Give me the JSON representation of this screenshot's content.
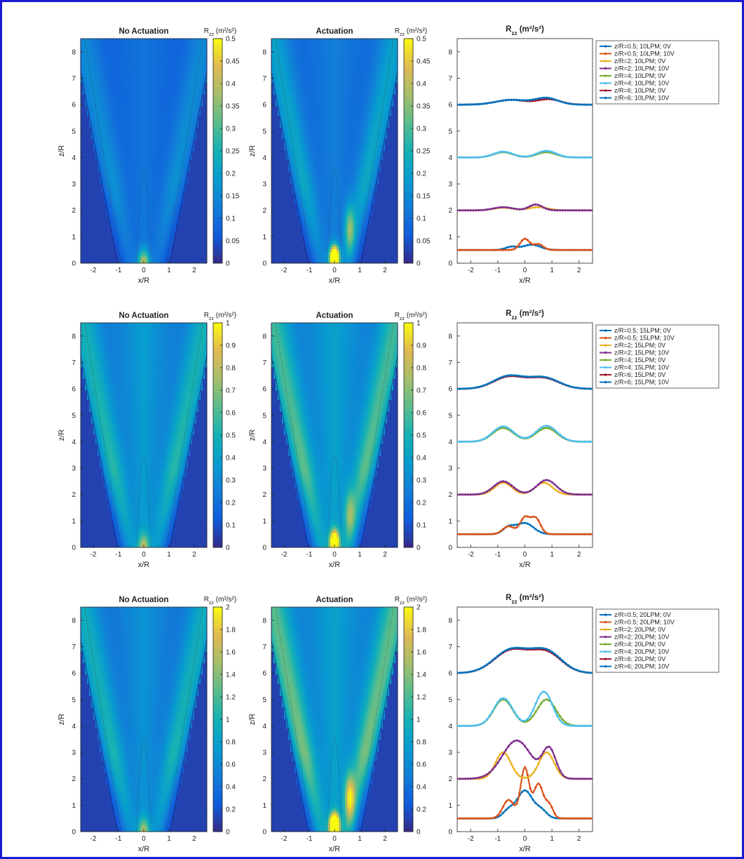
{
  "frame": {
    "border_color": "#1b1bd6",
    "background": "#ffffff"
  },
  "colormap": "parula",
  "chart_data": [
    {
      "row": 1,
      "type": "heatmap",
      "title": "No Actuation",
      "xlabel": "x/R",
      "ylabel": "z/R",
      "xlim": [
        -2.5,
        2.5
      ],
      "ylim": [
        0,
        8.5
      ],
      "xticks": [
        "-2",
        "-1",
        "0",
        "1",
        "2"
      ],
      "yticks": [
        "0",
        "1",
        "2",
        "3",
        "4",
        "5",
        "6",
        "7",
        "8"
      ],
      "colorbar_label": "R_zz (m²/s²)",
      "colorbar_ticks": [
        "0",
        "0.05",
        "0.1",
        "0.15",
        "0.2",
        "0.25",
        "0.3",
        "0.35",
        "0.4",
        "0.45",
        "0.5"
      ],
      "clim": [
        0,
        0.5
      ],
      "field": {
        "ambient": 0.03,
        "core": 0.12,
        "shear": 0.16,
        "nozzle": 0.3,
        "near_spot": 0.0
      }
    },
    {
      "row": 1,
      "type": "heatmap",
      "title": "Actuation",
      "xlabel": "x/R",
      "ylabel": "z/R",
      "xlim": [
        -2.5,
        2.5
      ],
      "ylim": [
        0,
        8.5
      ],
      "xticks": [
        "-2",
        "-1",
        "0",
        "1",
        "2"
      ],
      "yticks": [
        "0",
        "1",
        "2",
        "3",
        "4",
        "5",
        "6",
        "7",
        "8"
      ],
      "colorbar_label": "R_zz (m²/s²)",
      "colorbar_ticks": [
        "0",
        "0.05",
        "0.1",
        "0.15",
        "0.2",
        "0.25",
        "0.3",
        "0.35",
        "0.4",
        "0.45",
        "0.5"
      ],
      "clim": [
        0,
        0.5
      ],
      "field": {
        "ambient": 0.03,
        "core": 0.14,
        "shear": 0.22,
        "nozzle": 0.35,
        "near_spot": 0.38
      }
    },
    {
      "row": 1,
      "type": "line",
      "title": "R_zz (m²/s²)",
      "xlabel": "x/R",
      "ylabel": "",
      "xlim": [
        -2.5,
        2.5
      ],
      "ylim": [
        0,
        8.5
      ],
      "xticks": [
        "-2",
        "-1",
        "0",
        "1",
        "2"
      ],
      "yticks": [
        "0",
        "1",
        "2",
        "3",
        "4",
        "5",
        "6",
        "7",
        "8"
      ],
      "legend": "outside-top-right",
      "series": [
        {
          "name": "z/R=0.5; 10LPM; 0V",
          "color": "#0072BD",
          "base": 0.5,
          "peaks": [
            [
              0.25,
              0.2,
              0.45
            ],
            [
              -0.5,
              0.12,
              0.3
            ]
          ]
        },
        {
          "name": "z/R=0.5; 10LPM; 10V",
          "color": "#D95319",
          "base": 0.5,
          "peaks": [
            [
              0.0,
              0.42,
              0.25
            ],
            [
              0.5,
              0.22,
              0.25
            ]
          ]
        },
        {
          "name": "z/R=2; 10LPM; 0V",
          "color": "#EDB120",
          "base": 2.0,
          "peaks": [
            [
              -0.8,
              0.1,
              0.5
            ],
            [
              0.5,
              0.12,
              0.5
            ]
          ]
        },
        {
          "name": "z/R=2; 10LPM; 10V",
          "color": "#7E2F8E",
          "base": 2.0,
          "peaks": [
            [
              -0.8,
              0.12,
              0.5
            ],
            [
              0.4,
              0.22,
              0.35
            ]
          ]
        },
        {
          "name": "z/R=4; 10LPM; 0V",
          "color": "#77AC30",
          "base": 4.0,
          "peaks": [
            [
              -0.8,
              0.2,
              0.5
            ],
            [
              0.8,
              0.2,
              0.5
            ]
          ]
        },
        {
          "name": "z/R=4; 10LPM; 10V",
          "color": "#4DBEEE",
          "base": 4.0,
          "peaks": [
            [
              -0.8,
              0.22,
              0.5
            ],
            [
              0.8,
              0.25,
              0.5
            ]
          ]
        },
        {
          "name": "z/R=6; 10LPM; 0V",
          "color": "#A2142F",
          "base": 6.0,
          "peaks": [
            [
              -0.5,
              0.18,
              0.8
            ],
            [
              0.9,
              0.2,
              0.6
            ]
          ]
        },
        {
          "name": "z/R=6; 10LPM; 10V",
          "color": "#0072BD",
          "base": 6.0,
          "peaks": [
            [
              -0.5,
              0.18,
              0.8
            ],
            [
              0.8,
              0.25,
              0.6
            ]
          ]
        }
      ]
    },
    {
      "row": 2,
      "type": "heatmap",
      "title": "No Actuation",
      "xlabel": "x/R",
      "ylabel": "z/R",
      "xlim": [
        -2.5,
        2.5
      ],
      "ylim": [
        0,
        8.5
      ],
      "xticks": [
        "-2",
        "-1",
        "0",
        "1",
        "2"
      ],
      "yticks": [
        "0",
        "1",
        "2",
        "3",
        "4",
        "5",
        "6",
        "7",
        "8"
      ],
      "colorbar_label": "R_zz (m²/s²)",
      "colorbar_ticks": [
        "0",
        "0.1",
        "0.2",
        "0.3",
        "0.4",
        "0.5",
        "0.6",
        "0.7",
        "0.8",
        "0.9",
        "1"
      ],
      "clim": [
        0,
        1
      ],
      "field": {
        "ambient": 0.06,
        "core": 0.42,
        "shear": 0.52,
        "nozzle": 0.45,
        "near_spot": 0.0
      }
    },
    {
      "row": 2,
      "type": "heatmap",
      "title": "Actuation",
      "xlabel": "x/R",
      "ylabel": "z/R",
      "xlim": [
        -2.5,
        2.5
      ],
      "ylim": [
        0,
        8.5
      ],
      "xticks": [
        "-2",
        "-1",
        "0",
        "1",
        "2"
      ],
      "yticks": [
        "0",
        "1",
        "2",
        "3",
        "4",
        "5",
        "6",
        "7",
        "8"
      ],
      "colorbar_label": "R_zz (m²/s²)",
      "colorbar_ticks": [
        "0",
        "0.1",
        "0.2",
        "0.3",
        "0.4",
        "0.5",
        "0.6",
        "0.7",
        "0.8",
        "0.9",
        "1"
      ],
      "clim": [
        0,
        1
      ],
      "field": {
        "ambient": 0.06,
        "core": 0.45,
        "shear": 0.62,
        "nozzle": 0.55,
        "near_spot": 0.55
      }
    },
    {
      "row": 2,
      "type": "line",
      "title": "R_zz (m²/s²)",
      "xlabel": "x/R",
      "ylabel": "",
      "xlim": [
        -2.5,
        2.5
      ],
      "ylim": [
        0,
        8.5
      ],
      "xticks": [
        "-2",
        "-1",
        "0",
        "1",
        "2"
      ],
      "yticks": [
        "0",
        "1",
        "2",
        "3",
        "4",
        "5",
        "6",
        "7",
        "8"
      ],
      "legend": "outside-top-right",
      "series": [
        {
          "name": "z/R=0.5; 15LPM; 0V",
          "color": "#0072BD",
          "base": 0.5,
          "peaks": [
            [
              0.0,
              0.42,
              0.45
            ],
            [
              -0.6,
              0.25,
              0.3
            ]
          ]
        },
        {
          "name": "z/R=0.5; 15LPM; 10V",
          "color": "#D95319",
          "base": 0.5,
          "peaks": [
            [
              0.0,
              0.62,
              0.25
            ],
            [
              0.4,
              0.6,
              0.25
            ],
            [
              -0.6,
              0.3,
              0.3
            ]
          ]
        },
        {
          "name": "z/R=2; 15LPM; 0V",
          "color": "#EDB120",
          "base": 2.0,
          "peaks": [
            [
              -0.8,
              0.45,
              0.45
            ],
            [
              0.7,
              0.45,
              0.45
            ]
          ]
        },
        {
          "name": "z/R=2; 15LPM; 10V",
          "color": "#7E2F8E",
          "base": 2.0,
          "peaks": [
            [
              -0.8,
              0.5,
              0.5
            ],
            [
              0.8,
              0.55,
              0.5
            ]
          ]
        },
        {
          "name": "z/R=4; 15LPM; 0V",
          "color": "#77AC30",
          "base": 4.0,
          "peaks": [
            [
              -0.8,
              0.52,
              0.55
            ],
            [
              0.8,
              0.52,
              0.55
            ]
          ]
        },
        {
          "name": "z/R=4; 15LPM; 10V",
          "color": "#4DBEEE",
          "base": 4.0,
          "peaks": [
            [
              -0.8,
              0.58,
              0.55
            ],
            [
              0.8,
              0.6,
              0.55
            ]
          ]
        },
        {
          "name": "z/R=6; 15LPM; 0V",
          "color": "#A2142F",
          "base": 6.0,
          "peaks": [
            [
              -0.6,
              0.45,
              0.8
            ],
            [
              0.7,
              0.4,
              0.8
            ]
          ]
        },
        {
          "name": "z/R=6; 15LPM; 10V",
          "color": "#0072BD",
          "base": 6.0,
          "peaks": [
            [
              -0.6,
              0.48,
              0.8
            ],
            [
              0.7,
              0.42,
              0.8
            ]
          ]
        }
      ]
    },
    {
      "row": 3,
      "type": "heatmap",
      "title": "No Actuation",
      "xlabel": "x/R",
      "ylabel": "z/R",
      "xlim": [
        -2.5,
        2.5
      ],
      "ylim": [
        0,
        8.5
      ],
      "xticks": [
        "-2",
        "-1",
        "0",
        "1",
        "2"
      ],
      "yticks": [
        "0",
        "1",
        "2",
        "3",
        "4",
        "5",
        "6",
        "7",
        "8"
      ],
      "colorbar_label": "R_zz (m²/s²)",
      "colorbar_ticks": [
        "0",
        "0.2",
        "0.4",
        "0.6",
        "0.8",
        "1",
        "1.2",
        "1.4",
        "1.6",
        "1.8",
        "2"
      ],
      "clim": [
        0,
        2
      ],
      "field": {
        "ambient": 0.12,
        "core": 0.75,
        "shear": 1.0,
        "nozzle": 0.9,
        "near_spot": 0.0
      }
    },
    {
      "row": 3,
      "type": "heatmap",
      "title": "Actuation",
      "xlabel": "x/R",
      "ylabel": "z/R",
      "xlim": [
        -2.5,
        2.5
      ],
      "ylim": [
        0,
        8.5
      ],
      "xticks": [
        "-2",
        "-1",
        "0",
        "1",
        "2"
      ],
      "yticks": [
        "0",
        "1",
        "2",
        "3",
        "4",
        "5",
        "6",
        "7",
        "8"
      ],
      "colorbar_label": "R_zz (m²/s²)",
      "colorbar_ticks": [
        "0",
        "0.2",
        "0.4",
        "0.6",
        "0.8",
        "1",
        "1.2",
        "1.4",
        "1.6",
        "1.8",
        "2"
      ],
      "clim": [
        0,
        2
      ],
      "field": {
        "ambient": 0.12,
        "core": 0.9,
        "shear": 1.35,
        "nozzle": 1.3,
        "near_spot": 1.9
      }
    },
    {
      "row": 3,
      "type": "line",
      "title": "R_zz (m²/s²)",
      "xlabel": "x/R",
      "ylabel": "",
      "xlim": [
        -2.5,
        2.5
      ],
      "ylim": [
        0,
        8.5
      ],
      "xticks": [
        "-2",
        "-1",
        "0",
        "1",
        "2"
      ],
      "yticks": [
        "0",
        "1",
        "2",
        "3",
        "4",
        "5",
        "6",
        "7",
        "8"
      ],
      "legend": "outside-top-right",
      "series": [
        {
          "name": "z/R=0.5; 20LPM; 0V",
          "color": "#0072BD",
          "base": 0.5,
          "peaks": [
            [
              0.0,
              1.05,
              0.4
            ],
            [
              -0.6,
              0.3,
              0.3
            ],
            [
              0.6,
              0.3,
              0.3
            ]
          ]
        },
        {
          "name": "z/R=0.5; 20LPM; 10V",
          "color": "#D95319",
          "base": 0.5,
          "peaks": [
            [
              0.0,
              1.9,
              0.22
            ],
            [
              0.5,
              1.3,
              0.25
            ],
            [
              -0.6,
              0.7,
              0.3
            ],
            [
              0.9,
              0.5,
              0.2
            ]
          ]
        },
        {
          "name": "z/R=2; 20LPM; 0V",
          "color": "#EDB120",
          "base": 2.0,
          "peaks": [
            [
              -0.8,
              1.0,
              0.4
            ],
            [
              0.8,
              1.0,
              0.4
            ]
          ]
        },
        {
          "name": "z/R=2; 20LPM; 10V",
          "color": "#7E2F8E",
          "base": 2.0,
          "peaks": [
            [
              -0.3,
              1.45,
              0.75
            ],
            [
              0.9,
              1.1,
              0.35
            ]
          ]
        },
        {
          "name": "z/R=4; 20LPM; 0V",
          "color": "#77AC30",
          "base": 4.0,
          "peaks": [
            [
              -0.8,
              1.0,
              0.5
            ],
            [
              0.8,
              1.0,
              0.5
            ]
          ]
        },
        {
          "name": "z/R=4; 20LPM; 10V",
          "color": "#4DBEEE",
          "base": 4.0,
          "peaks": [
            [
              -0.8,
              1.05,
              0.5
            ],
            [
              0.7,
              1.3,
              0.45
            ]
          ]
        },
        {
          "name": "z/R=6; 20LPM; 0V",
          "color": "#A2142F",
          "base": 6.0,
          "peaks": [
            [
              -0.5,
              0.85,
              0.9
            ],
            [
              0.8,
              0.75,
              0.8
            ]
          ]
        },
        {
          "name": "z/R=6; 20LPM; 10V",
          "color": "#0072BD",
          "base": 6.0,
          "peaks": [
            [
              -0.5,
              0.88,
              0.9
            ],
            [
              0.8,
              0.8,
              0.8
            ]
          ]
        }
      ]
    }
  ]
}
